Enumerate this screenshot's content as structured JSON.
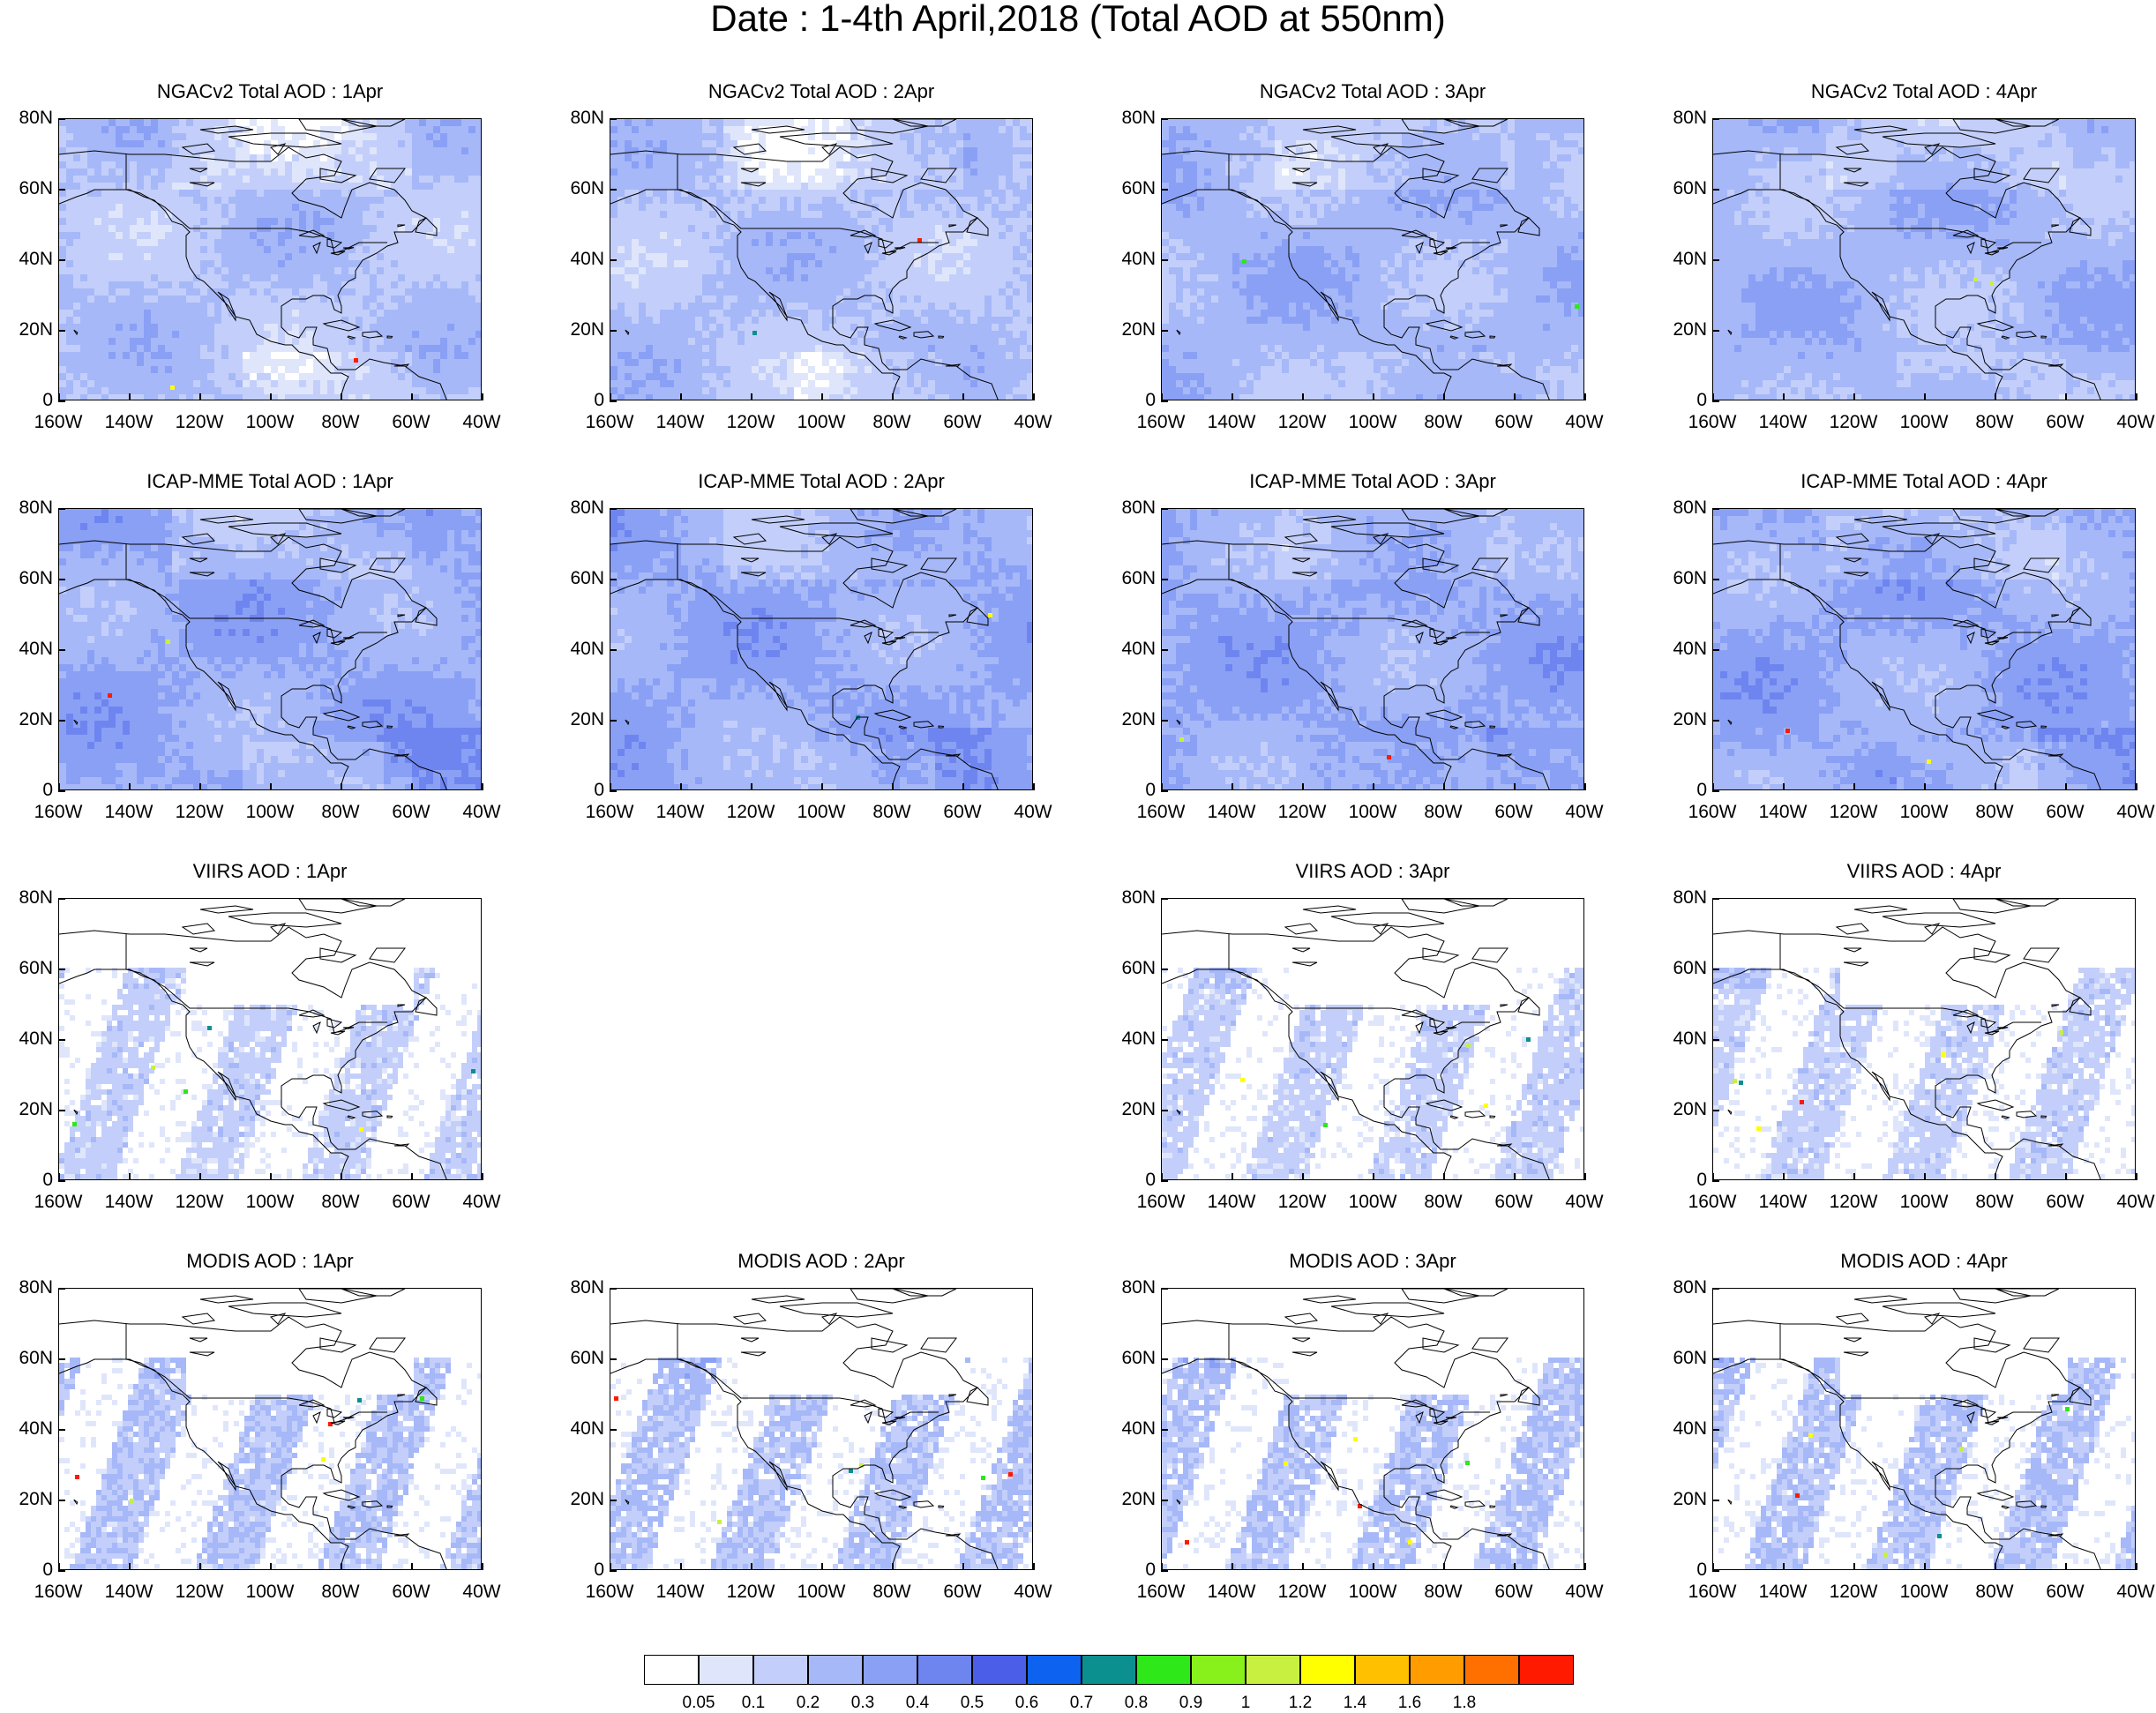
{
  "title": "Date : 1-4th April,2018 (Total AOD at 550nm)",
  "axes": {
    "y_ticks": [
      "80N",
      "60N",
      "40N",
      "20N",
      "0"
    ],
    "x_ticks": [
      "160W",
      "140W",
      "120W",
      "100W",
      "80W",
      "60W",
      "40W"
    ]
  },
  "panels": [
    {
      "title": "NGACv2 Total AOD : 1Apr",
      "row": 0,
      "col": 0,
      "style": "model",
      "level": 0.2
    },
    {
      "title": "NGACv2 Total AOD : 2Apr",
      "row": 0,
      "col": 1,
      "style": "model",
      "level": 0.2
    },
    {
      "title": "NGACv2 Total AOD : 3Apr",
      "row": 0,
      "col": 2,
      "style": "model",
      "level": 0.25
    },
    {
      "title": "NGACv2 Total AOD : 4Apr",
      "row": 0,
      "col": 3,
      "style": "model",
      "level": 0.25
    },
    {
      "title": "ICAP-MME Total AOD : 1Apr",
      "row": 1,
      "col": 0,
      "style": "model",
      "level": 0.3
    },
    {
      "title": "ICAP-MME Total AOD : 2Apr",
      "row": 1,
      "col": 1,
      "style": "model",
      "level": 0.3
    },
    {
      "title": "ICAP-MME Total AOD : 3Apr",
      "row": 1,
      "col": 2,
      "style": "model",
      "level": 0.3
    },
    {
      "title": "ICAP-MME Total AOD : 4Apr",
      "row": 1,
      "col": 3,
      "style": "model",
      "level": 0.3
    },
    {
      "title": "VIIRS AOD : 1Apr",
      "row": 2,
      "col": 0,
      "style": "satellite",
      "level": 0.15
    },
    {
      "title": "VIIRS AOD : 3Apr",
      "row": 2,
      "col": 2,
      "style": "satellite",
      "level": 0.15
    },
    {
      "title": "VIIRS AOD : 4Apr",
      "row": 2,
      "col": 3,
      "style": "satellite",
      "level": 0.15
    },
    {
      "title": "MODIS AOD : 1Apr",
      "row": 3,
      "col": 0,
      "style": "satellite",
      "level": 0.2
    },
    {
      "title": "MODIS AOD : 2Apr",
      "row": 3,
      "col": 1,
      "style": "satellite",
      "level": 0.2
    },
    {
      "title": "MODIS AOD : 3Apr",
      "row": 3,
      "col": 2,
      "style": "satellite",
      "level": 0.2
    },
    {
      "title": "MODIS AOD : 4Apr",
      "row": 3,
      "col": 3,
      "style": "satellite",
      "level": 0.2
    }
  ],
  "colorbar": {
    "labels": [
      "0.05",
      "0.1",
      "0.2",
      "0.3",
      "0.4",
      "0.5",
      "0.6",
      "0.7",
      "0.8",
      "0.9",
      "1",
      "1.2",
      "1.4",
      "1.6",
      "1.8"
    ],
    "colors": [
      "#ffffff",
      "#dfe6fb",
      "#c3cffa",
      "#a6b8f8",
      "#8aa0f5",
      "#6e85f0",
      "#4b5ee8",
      "#0d63f0",
      "#0c8f8f",
      "#2ee81a",
      "#88f01a",
      "#c8f040",
      "#ffff00",
      "#ffc000",
      "#ff9c00",
      "#ff7000",
      "#ff1a00"
    ]
  },
  "colors": {
    "coastline": "#000000",
    "model_base": "#c3cffa",
    "model_dark": "#8aa0f5",
    "satellite_base": "#dfe6fb"
  }
}
